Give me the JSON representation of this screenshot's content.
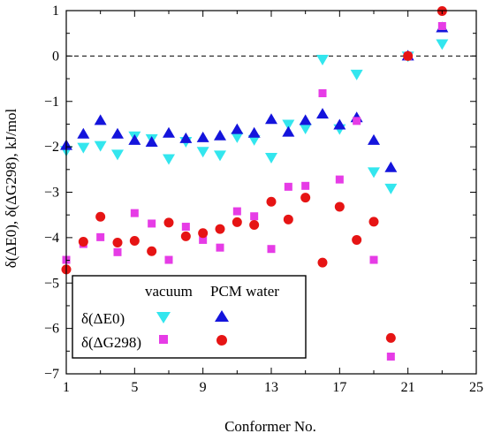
{
  "chart_data": {
    "type": "scatter",
    "xlabel": "Conformer No.",
    "ylabel": "δ(ΔE0), δ(ΔG298), kJ/mol",
    "xlim": [
      1,
      25
    ],
    "ylim": [
      -7,
      1
    ],
    "x_ticks": [
      1,
      5,
      9,
      13,
      17,
      21,
      25
    ],
    "y_ticks": [
      1,
      0,
      -1,
      -2,
      -3,
      -4,
      -5,
      -6,
      -7
    ],
    "x_tick_labels": [
      "1",
      "5",
      "9",
      "13",
      "17",
      "21",
      "25"
    ],
    "y_tick_labels": [
      "1",
      "0",
      "−1",
      "−2",
      "−3",
      "−4",
      "−5",
      "−6",
      "−7"
    ],
    "reference_line": {
      "y": 0,
      "style": "dashed"
    },
    "legend": {
      "placement": "bottom-left",
      "col_headers": [
        "vacuum",
        "PCM water"
      ],
      "row_labels": [
        "δ(ΔE0)",
        "δ(ΔG298)"
      ]
    },
    "series": [
      {
        "name": "δ(ΔE0) vacuum",
        "marker": "triangle-down",
        "color": "#33e6ee",
        "x": [
          1,
          2,
          3,
          4,
          5,
          6,
          7,
          8,
          9,
          10,
          11,
          12,
          13,
          14,
          15,
          16,
          17,
          18,
          19,
          20,
          21,
          23
        ],
        "y": [
          -2.08,
          -2.01,
          -1.97,
          -2.16,
          -1.76,
          -1.82,
          -2.26,
          -1.88,
          -2.1,
          -2.18,
          -1.78,
          -1.84,
          -2.23,
          -1.5,
          -1.59,
          -0.07,
          -1.6,
          -0.4,
          -2.55,
          -2.91,
          0.0,
          0.27
        ]
      },
      {
        "name": "δ(ΔE0) PCM water",
        "marker": "triangle-up",
        "color": "#1414dc",
        "x": [
          1,
          2,
          3,
          4,
          5,
          6,
          7,
          8,
          9,
          10,
          11,
          12,
          13,
          14,
          15,
          16,
          17,
          18,
          19,
          20,
          21,
          23
        ],
        "y": [
          -1.97,
          -1.72,
          -1.42,
          -1.72,
          -1.86,
          -1.9,
          -1.7,
          -1.82,
          -1.8,
          -1.76,
          -1.62,
          -1.7,
          -1.4,
          -1.68,
          -1.42,
          -1.28,
          -1.52,
          -1.36,
          -1.86,
          -2.46,
          0.0,
          0.62
        ]
      },
      {
        "name": "δ(ΔG298) vacuum",
        "marker": "square",
        "color": "#e63ce6",
        "x": [
          1,
          2,
          3,
          4,
          5,
          6,
          7,
          8,
          9,
          10,
          11,
          12,
          13,
          14,
          15,
          16,
          17,
          18,
          19,
          20,
          21,
          23
        ],
        "y": [
          -4.49,
          -4.14,
          -3.99,
          -4.32,
          -3.46,
          -3.69,
          -4.49,
          -3.76,
          -4.05,
          -4.22,
          -3.42,
          -3.53,
          -4.25,
          -2.88,
          -2.86,
          -0.82,
          -2.72,
          -1.43,
          -4.49,
          -6.62,
          0.0,
          0.66
        ]
      },
      {
        "name": "δ(ΔG298) PCM water",
        "marker": "circle",
        "color": "#e61414",
        "x": [
          1,
          2,
          3,
          4,
          5,
          6,
          7,
          8,
          9,
          10,
          11,
          12,
          13,
          14,
          15,
          16,
          17,
          18,
          19,
          20,
          21,
          23
        ],
        "y": [
          -4.7,
          -4.09,
          -3.54,
          -4.11,
          -4.07,
          -4.3,
          -3.67,
          -3.97,
          -3.9,
          -3.81,
          -3.66,
          -3.72,
          -3.21,
          -3.6,
          -3.12,
          -4.55,
          -3.32,
          -4.05,
          -3.65,
          -6.21,
          0.0,
          0.99
        ]
      }
    ]
  }
}
